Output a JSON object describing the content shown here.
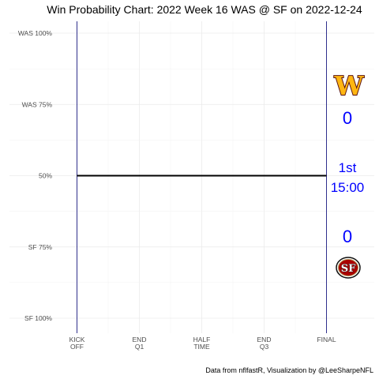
{
  "chart_data": {
    "type": "line",
    "title": "Win Probability Chart: 2022 Week 16 WAS @ SF on 2022-12-24",
    "caption": "Data from nflfastR, Visualization by @LeeSharpeNFL",
    "x_ticks": [
      "KICK|OFF",
      "END|Q1",
      "HALF|TIME",
      "END|Q3",
      "FINAL"
    ],
    "y_ticks": [
      "WAS 100%",
      "WAS 75%",
      "50%",
      "SF 75%",
      "SF 100%"
    ],
    "y_tick_values": [
      1.0,
      0.75,
      0.5,
      0.25,
      0.0
    ],
    "xlim": [
      0,
      3600
    ],
    "ylim": [
      0,
      1
    ],
    "series": [
      {
        "x": [
          0,
          3600
        ],
        "y": [
          0.5,
          0.5
        ],
        "color": "#000000"
      }
    ],
    "grid": true,
    "line_color": "#000000",
    "marker_line_color": "#1a1a80",
    "text_color": "#0000ff",
    "away_team": {
      "abbr": "WAS",
      "score": "0",
      "logo_icon": "commanders-w-logo-icon",
      "logo_letter": "W",
      "logo_fill": "#ffb612",
      "logo_stroke": "#5a1414"
    },
    "home_team": {
      "abbr": "SF",
      "score": "0",
      "logo_icon": "49ers-sf-logo-icon",
      "logo_letter": "SF",
      "logo_fill": "#aa0000",
      "logo_stroke": "#b3995d"
    },
    "game_state": {
      "quarter": "1st",
      "clock": "15:00"
    }
  }
}
